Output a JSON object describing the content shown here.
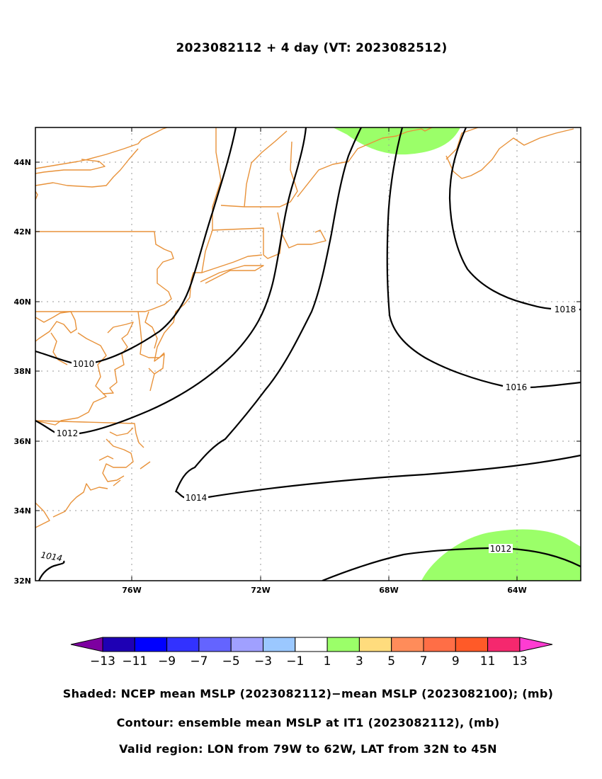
{
  "title": "2023082112 + 4 day (VT: 2023082512)",
  "map_extent": {
    "lon_min": -79,
    "lon_max": -62,
    "lat_min": 32,
    "lat_max": 45
  },
  "axes": {
    "x_ticks": [
      {
        "lon": -76,
        "label": "76W"
      },
      {
        "lon": -72,
        "label": "72W"
      },
      {
        "lon": -68,
        "label": "68W"
      },
      {
        "lon": -64,
        "label": "64W"
      }
    ],
    "y_ticks": [
      {
        "lat": 32,
        "label": "32N"
      },
      {
        "lat": 34,
        "label": "34N"
      },
      {
        "lat": 36,
        "label": "36N"
      },
      {
        "lat": 38,
        "label": "38N"
      },
      {
        "lat": 40,
        "label": "40N"
      },
      {
        "lat": 42,
        "label": "42N"
      },
      {
        "lat": 44,
        "label": "44N"
      }
    ],
    "gridlines": true
  },
  "contour_labels": [
    {
      "text": "1010"
    },
    {
      "text": "1012"
    },
    {
      "text": "1014"
    },
    {
      "text": "1014"
    },
    {
      "text": "1016"
    },
    {
      "text": "1018"
    },
    {
      "text": "1012"
    }
  ],
  "colorbar": {
    "colors": [
      "#7d00a0",
      "#1e00b4",
      "#0000ff",
      "#3232ff",
      "#6464ff",
      "#a0a0ff",
      "#9bc8ff",
      "#ffffff",
      "#9bff69",
      "#ffdc7d",
      "#ff8c5a",
      "#ff6e46",
      "#ff5a28",
      "#f5286e",
      "#ff3cd2"
    ],
    "labels": [
      "-13",
      "-11",
      "-9",
      "-7",
      "-5",
      "-3",
      "-1",
      "1",
      "3",
      "5",
      "7",
      "9",
      "11",
      "13"
    ]
  },
  "colors": {
    "coastline": "#e8923a",
    "positive_anomaly": "#9bff69",
    "contour": "#000000"
  },
  "captions": {
    "shaded": "Shaded: NCEP mean MSLP (2023082112)−mean MSLP (2023082100); (mb)",
    "contour": "Contour: ensemble mean MSLP at IT1 (2023082112), (mb)",
    "region": "Valid region: LON from 79W to 62W, LAT from 32N to 45N"
  }
}
